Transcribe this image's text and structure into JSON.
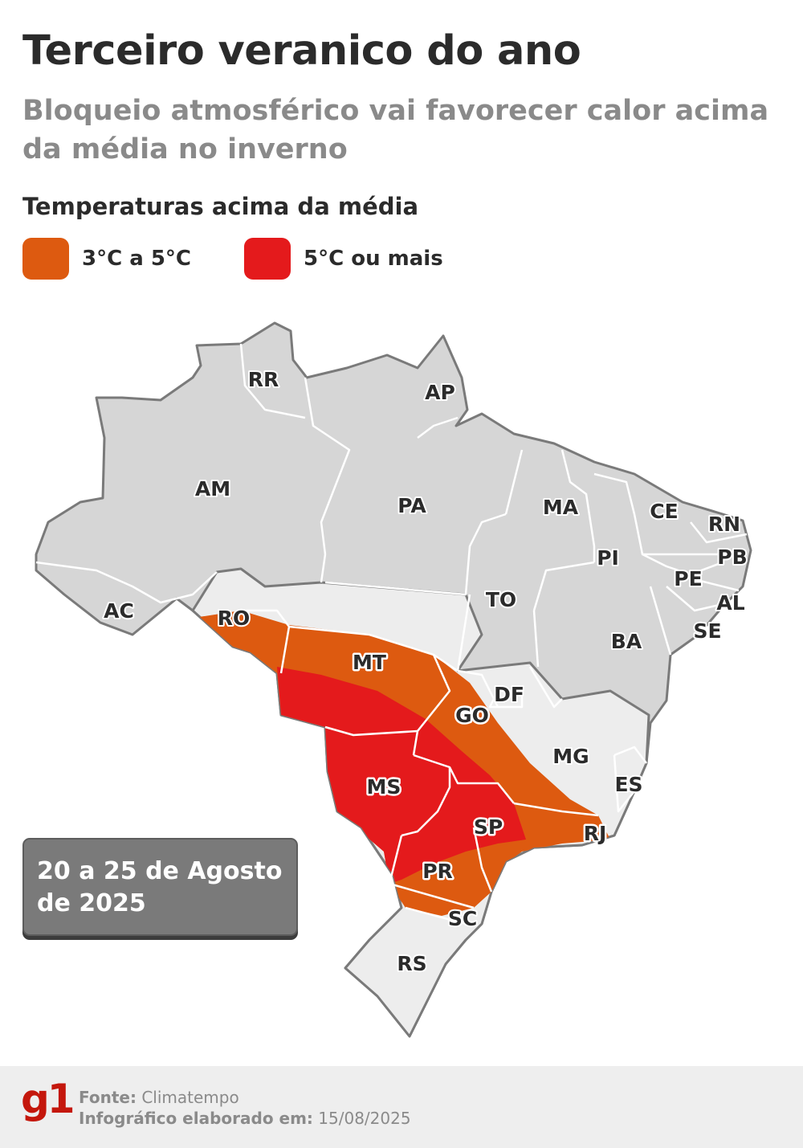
{
  "header": {
    "title": "Terceiro veranico do ano",
    "subtitle": "Bloqueio atmosférico vai favorecer calor acima da média no inverno"
  },
  "legend": {
    "title": "Temperaturas acima da média",
    "items": [
      {
        "label": "3°C a 5°C",
        "color": "#dd5a10"
      },
      {
        "label": "5°C ou mais",
        "color": "#e41a1c"
      }
    ]
  },
  "map": {
    "colors": {
      "state_default": "#d6d6d6",
      "state_light": "#ededed",
      "border": "#7a7a7a"
    },
    "states": [
      "RR",
      "AP",
      "AM",
      "PA",
      "MA",
      "CE",
      "RN",
      "PB",
      "PI",
      "PE",
      "AL",
      "SE",
      "AC",
      "RO",
      "TO",
      "BA",
      "MT",
      "DF",
      "GO",
      "MG",
      "ES",
      "MS",
      "SP",
      "RJ",
      "PR",
      "SC",
      "RS"
    ]
  },
  "period": {
    "line1": "20 a 25 de Agosto",
    "line2": "de 2025"
  },
  "footer": {
    "logo": "g1",
    "source_label": "Fonte:",
    "source_value": "Climatempo",
    "date_label": "Infográfico elaborado em:",
    "date_value": "15/08/2025"
  }
}
